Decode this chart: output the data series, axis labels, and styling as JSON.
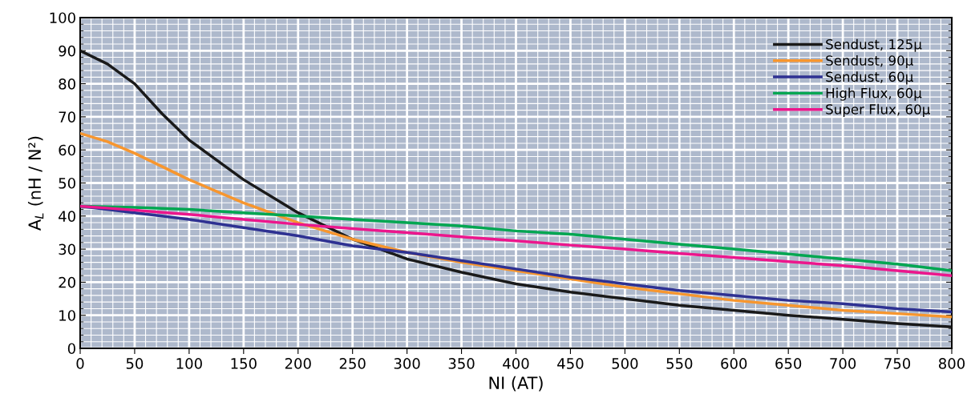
{
  "chart_data": {
    "type": "line",
    "xlabel": "NI (AT)",
    "ylabel": "A$_{L}$ (nH / N²)",
    "x": [
      0,
      25,
      50,
      75,
      100,
      150,
      200,
      250,
      300,
      350,
      400,
      450,
      500,
      550,
      600,
      650,
      700,
      750,
      800
    ],
    "series": [
      {
        "name": "Sendust, 125µ",
        "color": "#1a1a1a",
        "values": [
          90,
          86,
          80,
          71,
          63,
          51,
          41,
          33,
          27,
          23,
          19.5,
          17,
          15,
          13,
          11.5,
          10,
          8.8,
          7.5,
          6.5
        ]
      },
      {
        "name": "Sendust, 90µ",
        "color": "#f7962e",
        "values": [
          65,
          62.5,
          59,
          55,
          51,
          44,
          38,
          33,
          29,
          26,
          23.5,
          21,
          18.5,
          16.5,
          14.5,
          13,
          11.5,
          10.5,
          9.5
        ]
      },
      {
        "name": "Sendust, 60µ",
        "color": "#2e3192",
        "values": [
          43,
          42,
          41,
          40,
          39,
          36.5,
          34,
          31,
          29,
          26.5,
          24,
          21.5,
          19.5,
          17.5,
          16,
          14.5,
          13.5,
          12,
          11
        ]
      },
      {
        "name": "High Flux, 60µ",
        "color": "#00a651",
        "values": [
          43,
          42.8,
          42.6,
          42.3,
          42,
          41,
          40,
          39,
          38,
          37,
          35.5,
          34.5,
          33,
          31.5,
          30,
          28.5,
          27,
          25.5,
          23.5
        ]
      },
      {
        "name": "Super Flux, 60µ",
        "color": "#ec168c",
        "values": [
          43,
          42.4,
          41.8,
          41.1,
          40.5,
          39,
          37.5,
          36.2,
          35,
          33.7,
          32.5,
          31.2,
          30,
          28.7,
          27.5,
          26.2,
          25,
          23.5,
          22
        ]
      }
    ],
    "xlim": [
      0,
      800
    ],
    "xticks": [
      0,
      50,
      100,
      150,
      200,
      250,
      300,
      350,
      400,
      450,
      500,
      550,
      600,
      650,
      700,
      750,
      800
    ],
    "ylim": [
      0,
      100
    ],
    "yticks": [
      0,
      10,
      20,
      30,
      40,
      50,
      60,
      70,
      80,
      90,
      100
    ],
    "grid": true,
    "legend": "top right",
    "marker": "none",
    "line_style": "solid"
  }
}
